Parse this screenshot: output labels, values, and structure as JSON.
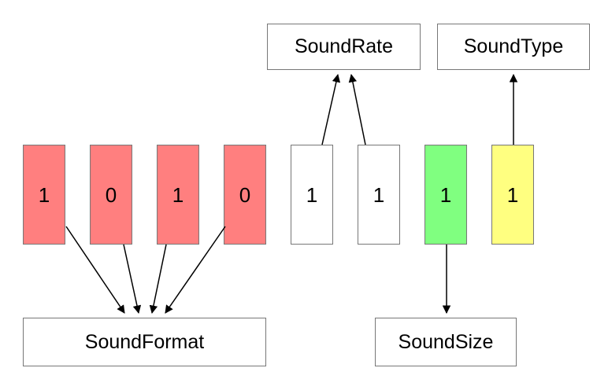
{
  "bits": [
    {
      "value": "1",
      "color": "#ff7f7f"
    },
    {
      "value": "0",
      "color": "#ff7f7f"
    },
    {
      "value": "1",
      "color": "#ff7f7f"
    },
    {
      "value": "0",
      "color": "#ff7f7f"
    },
    {
      "value": "1",
      "color": "#ffffff"
    },
    {
      "value": "1",
      "color": "#ffffff"
    },
    {
      "value": "1",
      "color": "#80ff80"
    },
    {
      "value": "1",
      "color": "#ffff80"
    }
  ],
  "labels": {
    "sound_rate": "SoundRate",
    "sound_type": "SoundType",
    "sound_format": "SoundFormat",
    "sound_size": "SoundSize"
  },
  "colors": {
    "format_bits": "#ff7f7f",
    "rate_bits": "#ffffff",
    "size_bit": "#80ff80",
    "type_bit": "#ffff80",
    "border": "#777777",
    "arrow": "#000000"
  }
}
